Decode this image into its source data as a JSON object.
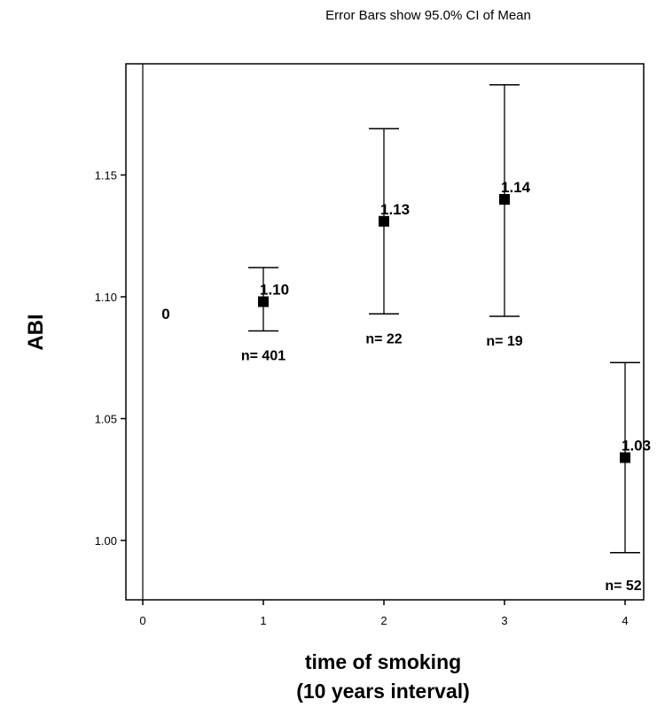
{
  "chart_data": {
    "type": "errorbar",
    "subtitle": "Error Bars show 95.0% CI of Mean",
    "xlabel_line1": "time of smoking",
    "xlabel_line2": "(10 years interval)",
    "ylabel": "ABI",
    "xlim": [
      0,
      4
    ],
    "ylim": [
      0.975,
      1.195
    ],
    "x_ticks": [
      "0",
      "1",
      "2",
      "3",
      "4"
    ],
    "y_ticks": [
      "1.00",
      "1.05",
      "1.10",
      "1.15"
    ],
    "grid": false,
    "zero_group": {
      "x": 0,
      "label": "0"
    },
    "points": [
      {
        "x": 1,
        "mean": 1.098,
        "lower": 1.086,
        "upper": 1.112,
        "mean_label": "1.10",
        "n_label": "n= 401"
      },
      {
        "x": 2,
        "mean": 1.131,
        "lower": 1.093,
        "upper": 1.169,
        "mean_label": "1.13",
        "n_label": "n= 22"
      },
      {
        "x": 3,
        "mean": 1.14,
        "lower": 1.092,
        "upper": 1.187,
        "mean_label": "1.14",
        "n_label": "n= 19"
      },
      {
        "x": 4,
        "mean": 1.034,
        "lower": 0.995,
        "upper": 1.073,
        "mean_label": "1.03",
        "n_label": "n= 52"
      }
    ]
  }
}
